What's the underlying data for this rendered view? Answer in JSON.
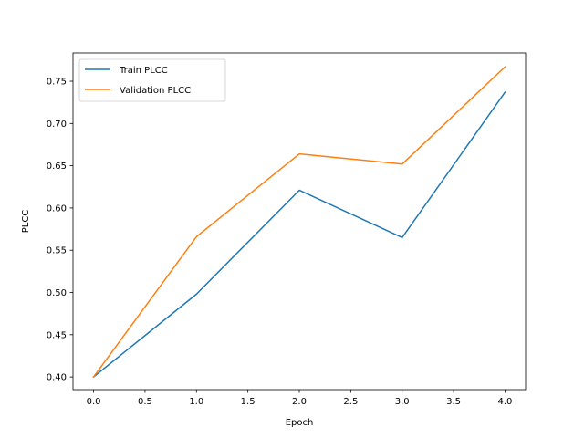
{
  "chart_data": {
    "type": "line",
    "title": "",
    "xlabel": "Epoch",
    "ylabel": "PLCC",
    "xlim": [
      -0.2,
      4.2
    ],
    "ylim": [
      0.385,
      0.7835
    ],
    "xticks": [
      0.0,
      0.5,
      1.0,
      1.5,
      2.0,
      2.5,
      3.0,
      3.5,
      4.0
    ],
    "xtick_labels": [
      "0.0",
      "0.5",
      "1.0",
      "1.5",
      "2.0",
      "2.5",
      "3.0",
      "3.5",
      "4.0"
    ],
    "yticks": [
      0.4,
      0.45,
      0.5,
      0.55,
      0.6,
      0.65,
      0.7,
      0.75
    ],
    "ytick_labels": [
      "0.40",
      "0.45",
      "0.50",
      "0.55",
      "0.60",
      "0.65",
      "0.70",
      "0.75"
    ],
    "grid": false,
    "legend_position": "top-left",
    "x": [
      0,
      1,
      2,
      3,
      4
    ],
    "series": [
      {
        "name": "Train PLCC",
        "color": "#1f77b4",
        "values": [
          0.4,
          0.498,
          0.621,
          0.565,
          0.737
        ]
      },
      {
        "name": "Validation PLCC",
        "color": "#ff7f0e",
        "values": [
          0.4,
          0.566,
          0.664,
          0.652,
          0.767
        ]
      }
    ]
  }
}
